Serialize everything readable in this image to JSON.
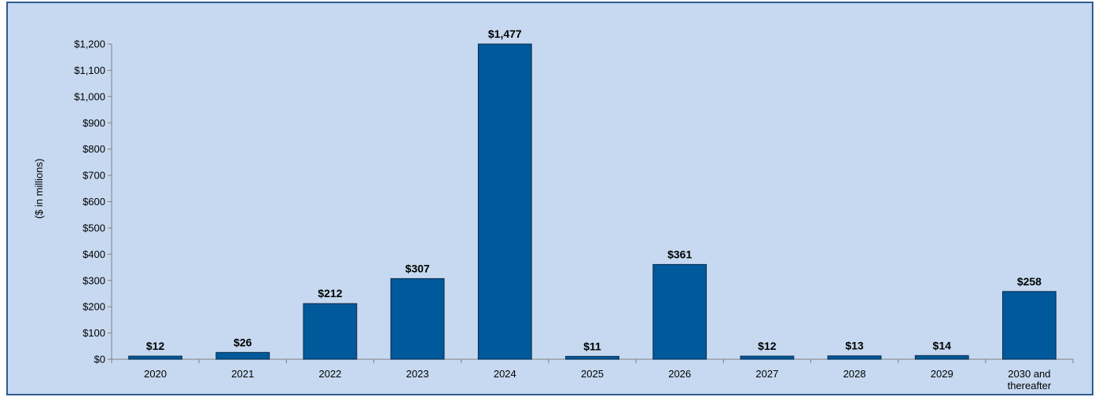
{
  "colors": {
    "plot_background": "#c6d9f0",
    "bar_fill": "#00599a",
    "bar_stroke": "#0a2a4a",
    "axis": "#808080",
    "frame": "#2d5b92"
  },
  "chart_data": {
    "type": "bar",
    "title": "",
    "xlabel": "",
    "ylabel": "($ in millions)",
    "ylim": [
      0,
      1200
    ],
    "y_ticks": [
      0,
      100,
      200,
      300,
      400,
      500,
      600,
      700,
      800,
      900,
      1000,
      1100,
      1200
    ],
    "y_tick_labels": [
      "$0",
      "$100",
      "$200",
      "$300",
      "$400",
      "$500",
      "$600",
      "$700",
      "$800",
      "$900",
      "$1,000",
      "$1,100",
      "$1,200"
    ],
    "categories": [
      "2020",
      "2021",
      "2022",
      "2023",
      "2024",
      "2025",
      "2026",
      "2027",
      "2028",
      "2029",
      "2030 and thereafter"
    ],
    "category_lines": [
      [
        "2020"
      ],
      [
        "2021"
      ],
      [
        "2022"
      ],
      [
        "2023"
      ],
      [
        "2024"
      ],
      [
        "2025"
      ],
      [
        "2026"
      ],
      [
        "2027"
      ],
      [
        "2028"
      ],
      [
        "2029"
      ],
      [
        "2030 and",
        "thereafter"
      ]
    ],
    "values": [
      12,
      26,
      212,
      307,
      1477,
      11,
      361,
      12,
      13,
      14,
      258
    ],
    "data_labels": [
      "$12",
      "$26",
      "$212",
      "$307",
      "$1,477",
      "$11",
      "$361",
      "$12",
      "$13",
      "$14",
      "$258"
    ],
    "grid": false,
    "legend": "none"
  }
}
